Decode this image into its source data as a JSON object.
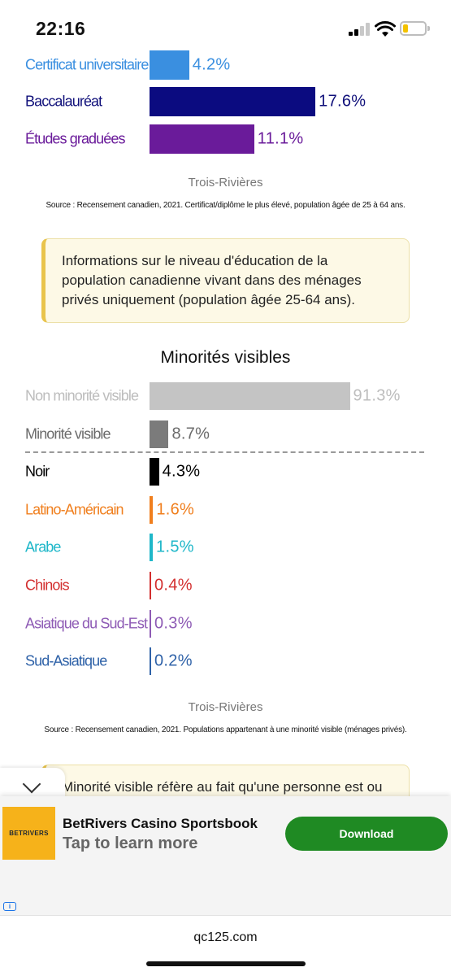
{
  "status_bar": {
    "time": "22:16"
  },
  "education_rows": [
    {
      "label": "Certificat universitaire",
      "value": 4.2,
      "value_text": "4.2%",
      "color": "#3a8fe0",
      "bar_color": "#3a8fe0"
    },
    {
      "label": "Baccalauréat",
      "value": 17.6,
      "value_text": "17.6%",
      "color": "#10107a",
      "bar_color": "#0b0b80"
    },
    {
      "label": "Études graduées",
      "value": 11.1,
      "value_text": "11.1%",
      "color": "#6a1b9a",
      "bar_color": "#6a1b9a"
    }
  ],
  "education_footer": {
    "place": "Trois-Rivières",
    "source": "Source : Recensement canadien, 2021. Certificat/diplôme le plus élevé, population âgée de 25 à 64 ans."
  },
  "education_note": "Informations sur le niveau d'éducation de la population canadienne vivant dans des ménages privés uniquement (population âgée 25-64 ans).",
  "minorities": {
    "title": "Minorités visibles",
    "rows": [
      {
        "label": "Non minorité visible",
        "value": 91.3,
        "value_text": "91.3%",
        "color": "#bdbdbd",
        "bar_color": "#c4c4c4"
      },
      {
        "label": "Minorité visible",
        "value": 8.7,
        "value_text": "8.7%",
        "color": "#6b6b6b",
        "bar_color": "#7b7b7b"
      },
      {
        "label": "Noir",
        "value": 4.3,
        "value_text": "4.3%",
        "color": "#000000",
        "bar_color": "#000000"
      },
      {
        "label": "Latino-Américain",
        "value": 1.6,
        "value_text": "1.6%",
        "color": "#f07f1e",
        "bar_color": "#f07f1e"
      },
      {
        "label": "Arabe",
        "value": 1.5,
        "value_text": "1.5%",
        "color": "#1fb7c9",
        "bar_color": "#1fb7c9"
      },
      {
        "label": "Chinois",
        "value": 0.4,
        "value_text": "0.4%",
        "color": "#d32f2f",
        "bar_color": "#d32f2f"
      },
      {
        "label": "Asiatique du Sud-Est",
        "value": 0.3,
        "value_text": "0.3%",
        "color": "#8e5bb5",
        "bar_color": "#8e5bb5"
      },
      {
        "label": "Sud-Asiatique",
        "value": 0.2,
        "value_text": "0.2%",
        "color": "#2f62a8",
        "bar_color": "#2f62a8"
      }
    ],
    "footer_place": "Trois-Rivières",
    "source": "Source : Recensement canadien, 2021. Populations appartenant à une minorité visible (ménages privés).",
    "note_partial": "Minorité visible réfère au fait qu'une personne est ou"
  },
  "ad": {
    "logo_text": "BETRIVERS",
    "title": "BetRivers Casino Sportsbook",
    "subtitle": "Tap to learn more",
    "button": "Download",
    "info_icon": "i"
  },
  "browser": {
    "url": "qc125.com"
  }
}
